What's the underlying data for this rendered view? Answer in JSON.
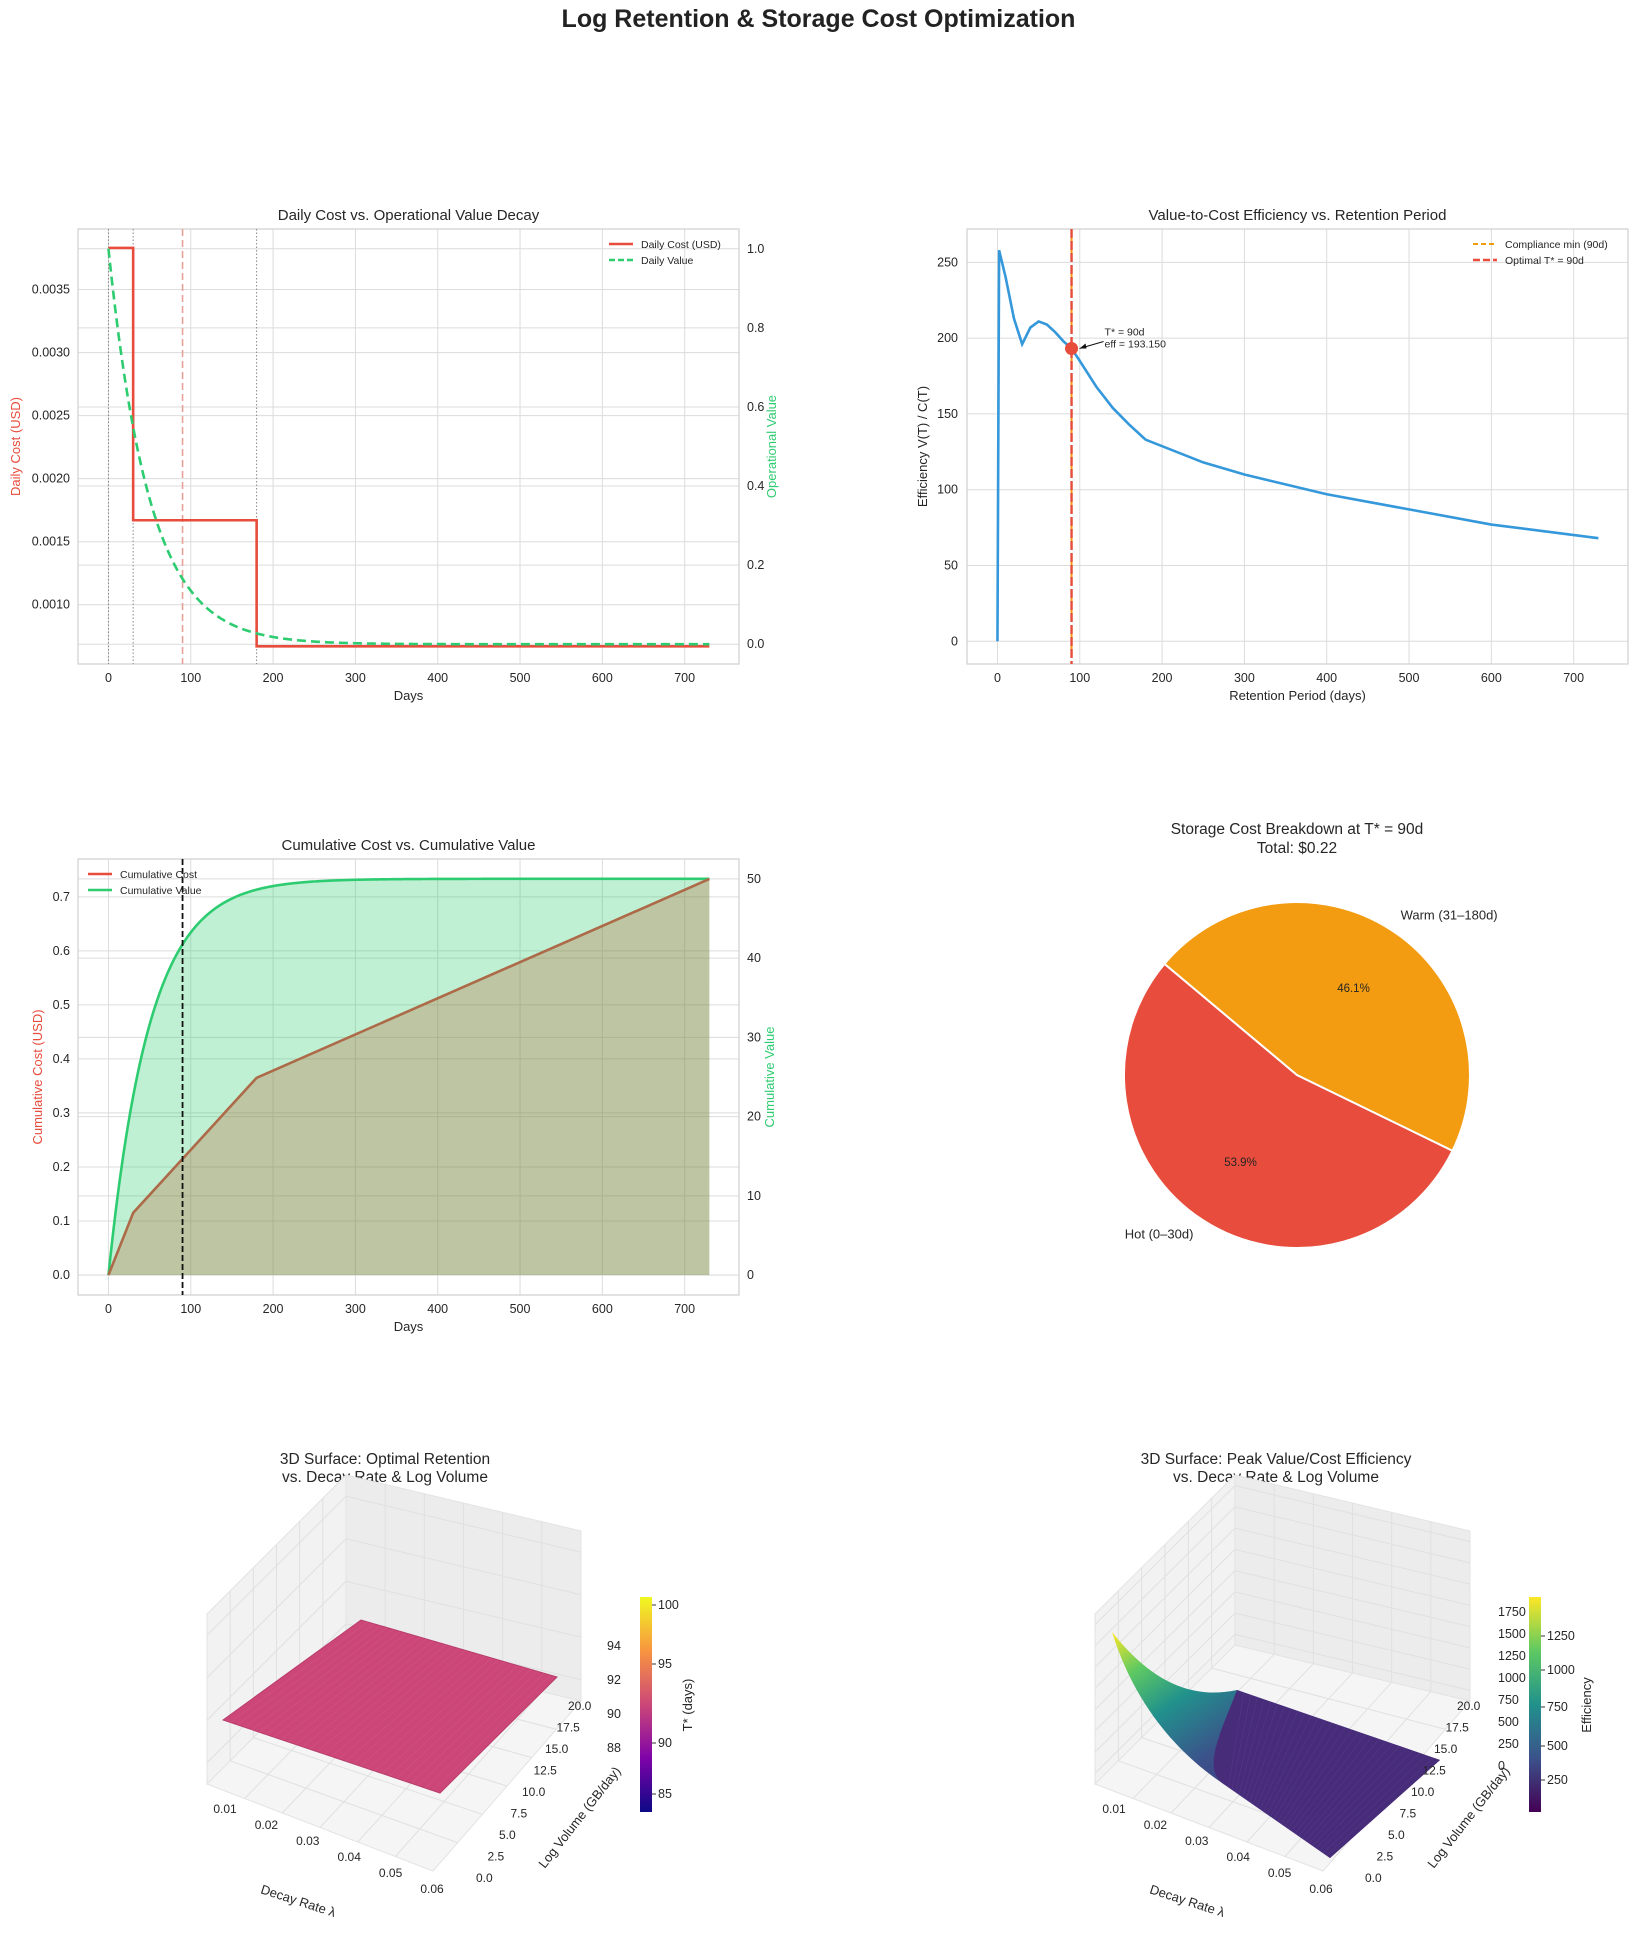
{
  "page_title": "Log Retention & Storage Cost Optimization",
  "colors": {
    "cost": "#e74c3c",
    "value": "#2ecc71",
    "efficiency": "#3498db",
    "compliance": "#f39c12",
    "optimal": "#e74c3c",
    "hot": "#e74c3c",
    "warm": "#f39c12"
  },
  "chart_data": [
    {
      "id": "daily",
      "type": "line",
      "title": "Daily Cost vs. Operational Value Decay",
      "xlabel": "Days",
      "ylabel_left": "Daily Cost (USD)",
      "ylabel_right": "Operational Value",
      "xlim": [
        -37,
        766
      ],
      "ylim_left": [
        0.00053,
        0.00398
      ],
      "ylim_right": [
        -0.05,
        1.05
      ],
      "xticks": [
        "0",
        "100",
        "200",
        "300",
        "400",
        "500",
        "600",
        "700"
      ],
      "yticks_left": [
        "0.0010",
        "0.0015",
        "0.0020",
        "0.0025",
        "0.0030",
        "0.0035"
      ],
      "yticks_right": [
        "0.0",
        "0.2",
        "0.4",
        "0.6",
        "0.8",
        "1.0"
      ],
      "legend": [
        "Daily Cost (USD)",
        "Daily Value"
      ],
      "legend_position": "upper-right",
      "grid": true,
      "cost_steps": [
        {
          "from": 0,
          "to": 30,
          "cost": 0.00383
        },
        {
          "from": 30,
          "to": 180,
          "cost": 0.00167
        },
        {
          "from": 180,
          "to": 730,
          "cost": 0.00067
        }
      ],
      "value_decay_rate": 0.02,
      "marker_days": [
        0,
        30,
        90,
        180
      ]
    },
    {
      "id": "efficiency",
      "type": "line",
      "title": "Value-to-Cost Efficiency vs. Retention Period",
      "xlabel": "Retention Period (days)",
      "ylabel": "Efficiency  V(T) / C(T)",
      "xlim": [
        -37,
        766
      ],
      "ylim": [
        -15,
        272
      ],
      "xticks": [
        "0",
        "100",
        "200",
        "300",
        "400",
        "500",
        "600",
        "700"
      ],
      "yticks": [
        "0",
        "50",
        "100",
        "150",
        "200",
        "250"
      ],
      "legend": [
        "Compliance min (90d)",
        "Optimal T* = 90d"
      ],
      "legend_position": "upper-right",
      "grid": true,
      "points": [
        [
          0,
          0
        ],
        [
          2,
          258
        ],
        [
          10,
          240
        ],
        [
          20,
          213
        ],
        [
          30,
          196
        ],
        [
          40,
          207
        ],
        [
          50,
          211
        ],
        [
          60,
          209
        ],
        [
          70,
          204
        ],
        [
          80,
          198
        ],
        [
          90,
          193.15
        ],
        [
          100,
          185
        ],
        [
          120,
          168
        ],
        [
          140,
          154
        ],
        [
          160,
          143
        ],
        [
          180,
          133
        ],
        [
          250,
          118
        ],
        [
          300,
          110
        ],
        [
          400,
          97
        ],
        [
          500,
          87
        ],
        [
          600,
          77
        ],
        [
          730,
          68
        ]
      ],
      "optimal": {
        "x": 90,
        "y": 193.15
      },
      "annotation_lines": [
        "T* = 90d",
        "eff = 193.150"
      ]
    },
    {
      "id": "cumulative",
      "type": "area",
      "title": "Cumulative Cost vs. Cumulative Value",
      "xlabel": "Days",
      "ylabel_left": "Cumulative Cost (USD)",
      "ylabel_right": "Cumulative Value",
      "xlim": [
        -37,
        766
      ],
      "ylim_left": [
        -0.037,
        0.77
      ],
      "ylim_right": [
        -2.5,
        52.5
      ],
      "xticks": [
        "0",
        "100",
        "200",
        "300",
        "400",
        "500",
        "600",
        "700"
      ],
      "yticks_left": [
        "0.0",
        "0.1",
        "0.2",
        "0.3",
        "0.4",
        "0.5",
        "0.6",
        "0.7"
      ],
      "yticks_right": [
        "0",
        "10",
        "20",
        "30",
        "40",
        "50"
      ],
      "legend": [
        "Cumulative Cost",
        "Cumulative Value"
      ],
      "legend_position": "upper-left",
      "grid": true,
      "cost_points": [
        [
          0,
          0
        ],
        [
          30,
          0.115
        ],
        [
          180,
          0.365
        ],
        [
          730,
          0.733
        ]
      ],
      "value_asymptote": 50,
      "value_rate": 0.02,
      "marker_day": 90
    },
    {
      "id": "pie",
      "type": "pie",
      "title_lines": [
        "Storage Cost Breakdown at T* = 90d",
        "Total: $0.22"
      ],
      "slices": [
        {
          "label": "Hot  (0–30d)",
          "pct_label": "53.9%",
          "value": 53.9,
          "color": "#e74c3c"
        },
        {
          "label": "Warm (31–180d)",
          "pct_label": "46.1%",
          "value": 46.1,
          "color": "#f39c12"
        }
      ]
    },
    {
      "id": "surface-t",
      "type": "surface3d",
      "title_lines": [
        "3D Surface: Optimal Retention",
        "vs. Decay Rate & Log Volume"
      ],
      "xlabel": "Decay Rate  λ",
      "ylabel": "Log Volume (GB/day)",
      "zticks": [
        "88",
        "90",
        "92",
        "94"
      ],
      "xticks": [
        "0.01",
        "0.02",
        "0.03",
        "0.04",
        "0.05",
        "0.06"
      ],
      "yticks": [
        "0.0",
        "2.5",
        "5.0",
        "7.5",
        "10.0",
        "12.5",
        "15.0",
        "17.5",
        "20.0"
      ],
      "colorbar_label": "T* (days)",
      "colorbar_ticks": [
        "85",
        "90",
        "95",
        "100"
      ]
    },
    {
      "id": "surface-eff",
      "type": "surface3d",
      "title_lines": [
        "3D Surface: Peak Value/Cost Efficiency",
        "vs. Decay Rate & Log Volume"
      ],
      "xlabel": "Decay Rate  λ",
      "ylabel": "Log Volume (GB/day)",
      "zticks": [
        "0",
        "250",
        "500",
        "750",
        "1000",
        "1250",
        "1500",
        "1750"
      ],
      "xticks": [
        "0.01",
        "0.02",
        "0.03",
        "0.04",
        "0.05",
        "0.06"
      ],
      "yticks": [
        "0.0",
        "2.5",
        "5.0",
        "7.5",
        "10.0",
        "12.5",
        "15.0",
        "17.5",
        "20.0"
      ],
      "colorbar_label": "Efficiency",
      "colorbar_ticks": [
        "250",
        "500",
        "750",
        "1000",
        "1250"
      ]
    }
  ]
}
